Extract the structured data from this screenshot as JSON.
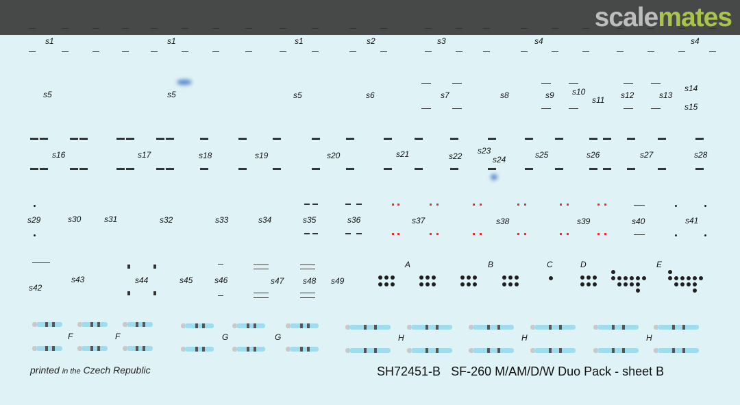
{
  "watermark": {
    "part1": "scale",
    "part2": "mates"
  },
  "labels": {
    "s1": "s1",
    "s2": "s2",
    "s3": "s3",
    "s4": "s4",
    "s5": "s5",
    "s6": "s6",
    "s7": "s7",
    "s8": "s8",
    "s9": "s9",
    "s10": "s10",
    "s11": "s11",
    "s12": "s12",
    "s13": "s13",
    "s14": "s14",
    "s15": "s15",
    "s16": "s16",
    "s17": "s17",
    "s18": "s18",
    "s19": "s19",
    "s20": "s20",
    "s21": "s21",
    "s22": "s22",
    "s23": "s23",
    "s24": "s24",
    "s25": "s25",
    "s26": "s26",
    "s27": "s27",
    "s28": "s28",
    "s29": "s29",
    "s30": "s30",
    "s31": "s31",
    "s32": "s32",
    "s33": "s33",
    "s34": "s34",
    "s35": "s35",
    "s36": "s36",
    "s37": "s37",
    "s38": "s38",
    "s39": "s39",
    "s40": "s40",
    "s41": "s41",
    "s42": "s42",
    "s43": "s43",
    "s44": "s44",
    "s45": "s45",
    "s46": "s46",
    "s47": "s47",
    "s48": "s48",
    "s49": "s49",
    "A": "A",
    "B": "B",
    "C": "C",
    "D": "D",
    "E": "E",
    "F": "F",
    "G": "G",
    "H": "H"
  },
  "footer": {
    "printed": "printed",
    "in_the": "in the",
    "country": "Czech Republic",
    "sheet_code": "SH72451-B",
    "title": "SF-260 M/AM/D/W Duo Pack  -  sheet B"
  },
  "colors": {
    "sheet": "#dff2f6",
    "topbar": "#474949",
    "brand_gray": "#bdbdbd",
    "brand_green": "#a9c44a",
    "stripe": "#9fdcee",
    "red_mark": "#e03030"
  }
}
